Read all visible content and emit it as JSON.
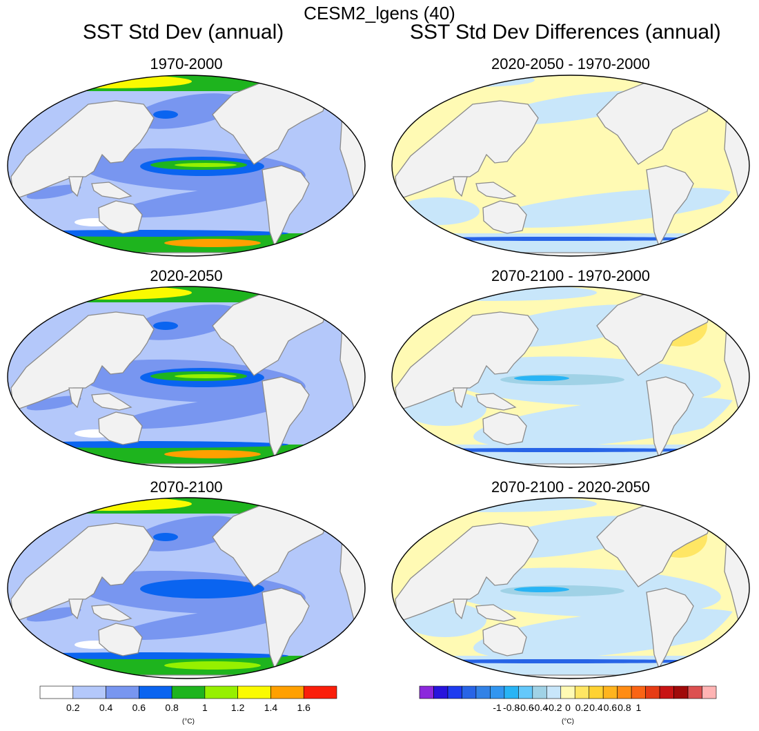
{
  "figure": {
    "main_title": "CESM2_lgens (40)",
    "left_title": "SST Std Dev (annual)",
    "right_title": "SST Std Dev Differences (annual)"
  },
  "chart_data": [
    {
      "type": "heatmap",
      "panel": "left-1",
      "title": "1970-2000",
      "units": "(°C)",
      "equatorial_max": 1.0,
      "polar_max": 1.6
    },
    {
      "type": "heatmap",
      "panel": "left-2",
      "title": "2020-2050",
      "units": "(°C)",
      "equatorial_max": 1.0,
      "polar_max": 1.6
    },
    {
      "type": "heatmap",
      "panel": "left-3",
      "title": "2070-2100",
      "units": "(°C)",
      "equatorial_max": 0.9,
      "polar_max": 1.0
    },
    {
      "type": "heatmap",
      "panel": "right-1",
      "title": "2020-2050 - 1970-2000",
      "units": "(°C)"
    },
    {
      "type": "heatmap",
      "panel": "right-2",
      "title": "2070-2100 - 1970-2000",
      "units": "(°C)"
    },
    {
      "type": "heatmap",
      "panel": "right-3",
      "title": "2070-2100 - 2020-2050",
      "units": "(°C)"
    }
  ],
  "colorbar_left": {
    "units": "(°C)",
    "labels": [
      "0.2",
      "0.4",
      "0.6",
      "0.8",
      "1",
      "1.2",
      "1.4",
      "1.6"
    ],
    "colors": [
      "#ffffff",
      "#b4c8fa",
      "#7896f0",
      "#0a64f0",
      "#1eb41e",
      "#96f000",
      "#fafa00",
      "#ffa000",
      "#fa1e0a"
    ]
  },
  "colorbar_right": {
    "units": "(°C)",
    "labels": [
      "-1",
      "-0.8",
      "-0.6",
      "-0.4",
      "-0.2",
      "0",
      "0.2",
      "0.4",
      "0.6",
      "0.8",
      "1"
    ],
    "colors": [
      "#8c28dc",
      "#2814dc",
      "#1e3cf0",
      "#2864e6",
      "#3282e6",
      "#3296f0",
      "#28b4f5",
      "#64c8fa",
      "#a0d2e6",
      "#c8e6fa",
      "#fffab4",
      "#ffe664",
      "#ffd232",
      "#ffb41e",
      "#ff8c14",
      "#fa6414",
      "#e63c14",
      "#c81414",
      "#a00a0a",
      "#dc5050",
      "#ffb4b4"
    ]
  }
}
